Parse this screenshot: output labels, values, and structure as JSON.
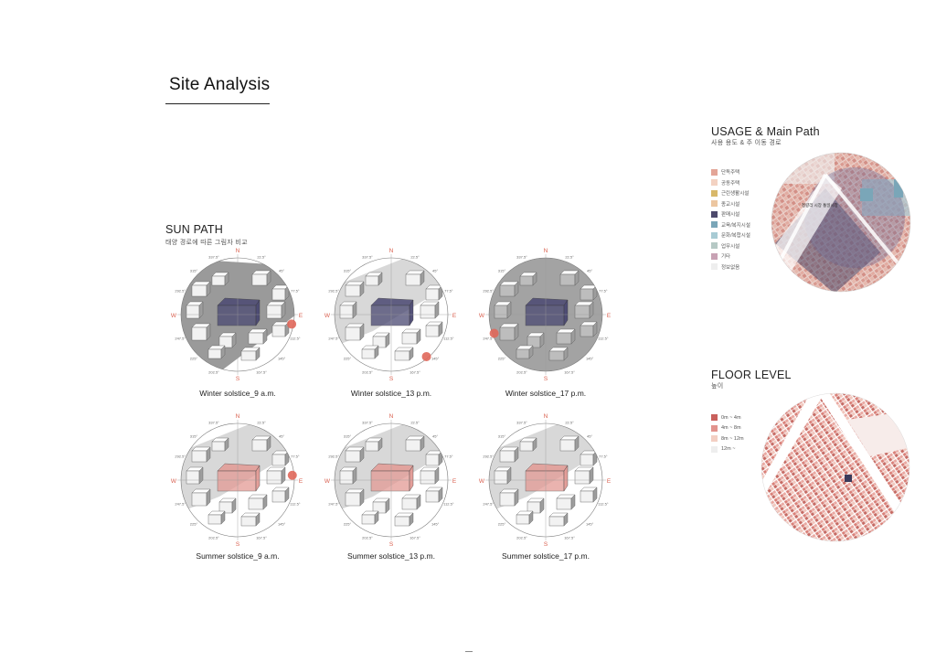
{
  "page": {
    "title": "Site Analysis"
  },
  "sun_path": {
    "title": "SUN PATH",
    "subtitle": "태양 경로에 따른 그림자 비교",
    "compass": {
      "n": "N",
      "s": "S",
      "e": "E",
      "w": "W",
      "angles": [
        "337.5°",
        "22.5°",
        "315°",
        "45°",
        "292.5°",
        "77.5°",
        "247.5°",
        "112.5°",
        "225°",
        "145°",
        "202.5°",
        "167.5°"
      ]
    },
    "diagrams": [
      {
        "caption": "Winter solstice_9 a.m.",
        "season": "winter",
        "shadow": "heavy",
        "sun_angle": 100
      },
      {
        "caption": "Winter solstice_13 p.m.",
        "season": "winter",
        "shadow": "light",
        "sun_angle": 140
      },
      {
        "caption": "Winter solstice_17 p.m.",
        "season": "winter",
        "shadow": "full",
        "sun_angle": 250
      },
      {
        "caption": "Summer solstice_9 a.m.",
        "season": "summer",
        "shadow": "light",
        "sun_angle": 85
      },
      {
        "caption": "Summer solstice_13 p.m.",
        "season": "summer",
        "shadow": "light",
        "sun_angle": 0
      },
      {
        "caption": "Summer solstice_17 p.m.",
        "season": "summer",
        "shadow": "light",
        "sun_angle": 0
      }
    ],
    "colors": {
      "winter_mass": "#4a4872",
      "summer_mass": "#e39a95",
      "sun": "#e0675a",
      "compass_label": "#d9604f"
    }
  },
  "usage": {
    "title": "USAGE & Main Path",
    "subtitle": "사용 용도 & 주 이동 경로",
    "legend": [
      {
        "label": "단독주택",
        "color": "#e3a597"
      },
      {
        "label": "공동주택",
        "color": "#f3d2c2"
      },
      {
        "label": "근린생활시설",
        "color": "#d8b86a"
      },
      {
        "label": "종교시설",
        "color": "#ecc6a0"
      },
      {
        "label": "판매시설",
        "color": "#4d4a6c"
      },
      {
        "label": "교육/복지시설",
        "color": "#7aa6b8"
      },
      {
        "label": "문화/복합시설",
        "color": "#a8cbd4"
      },
      {
        "label": "업무시설",
        "color": "#b6c9c5"
      },
      {
        "label": "기타",
        "color": "#c8a2b4"
      },
      {
        "label": "정보없음",
        "color": "#eeeeee"
      }
    ],
    "map_label": "청량리 시장 통일시장"
  },
  "floor_level": {
    "title": "FLOOR LEVEL",
    "subtitle": "높이",
    "legend": [
      {
        "label": "0m ~ 4m",
        "color": "#c9605c"
      },
      {
        "label": "4m ~ 8m",
        "color": "#e2938d"
      },
      {
        "label": "8m ~ 12m",
        "color": "#f3cfc3"
      },
      {
        "label": "12m ~",
        "color": "#eeeeee"
      }
    ]
  }
}
